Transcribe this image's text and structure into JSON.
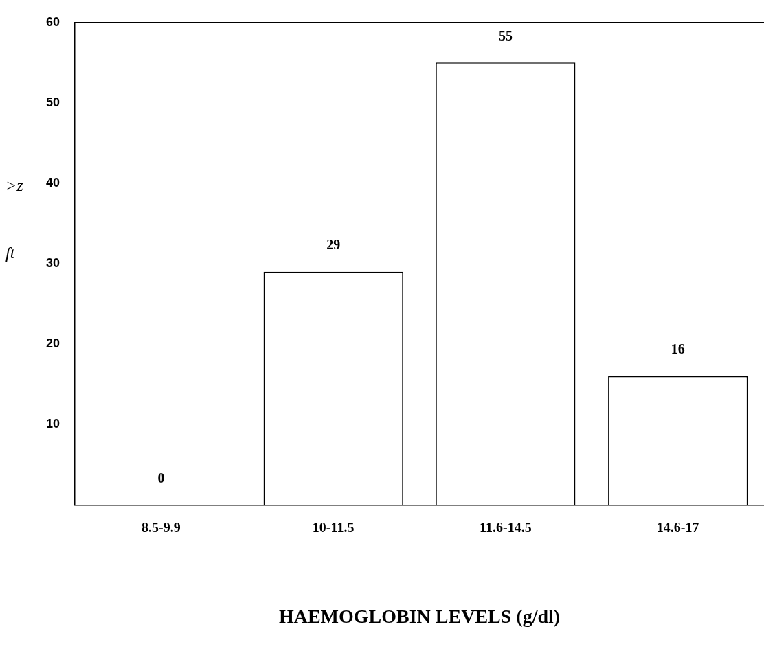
{
  "chart_data": {
    "type": "bar",
    "xlabel": "HAEMOGLOBIN LEVELS (g/dl)",
    "categories": [
      "8.5-9.9",
      "10-11.5",
      "11.6-14.5",
      "14.6-17"
    ],
    "values": [
      0,
      29,
      55,
      16
    ],
    "color": "#ffffff",
    "ylim": [
      0,
      60
    ],
    "yticks": [
      10,
      20,
      30,
      40,
      50,
      60
    ],
    "data_labels": true,
    "grid": false,
    "legend": false,
    "annotations": [
      ">z",
      "ft"
    ]
  }
}
